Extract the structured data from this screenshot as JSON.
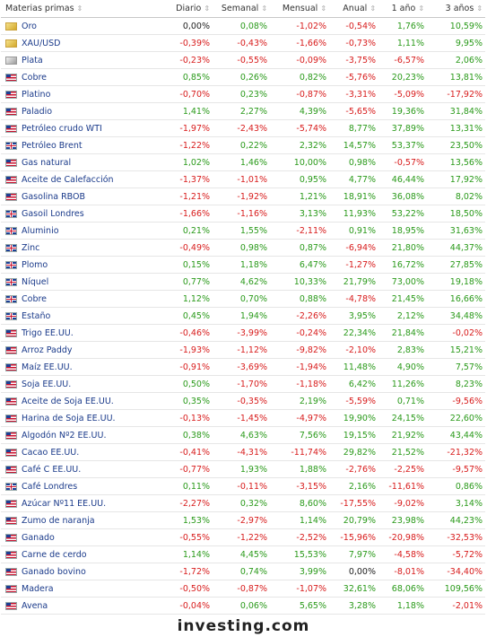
{
  "columns": {
    "name": "Materias primas",
    "daily": "Diario",
    "weekly": "Semanal",
    "monthly": "Mensual",
    "yearly": "Anual",
    "one_year": "1 año",
    "three_years": "3 años"
  },
  "rows": [
    {
      "flag": "gold",
      "name": "Oro",
      "daily": "0,00%",
      "weekly": "0,08%",
      "monthly": "-1,02%",
      "yearly": "-0,54%",
      "one_year": "1,76%",
      "three_years": "10,59%"
    },
    {
      "flag": "gold",
      "name": "XAU/USD",
      "daily": "-0,39%",
      "weekly": "-0,43%",
      "monthly": "-1,66%",
      "yearly": "-0,73%",
      "one_year": "1,11%",
      "three_years": "9,95%"
    },
    {
      "flag": "silver",
      "name": "Plata",
      "daily": "-0,23%",
      "weekly": "-0,55%",
      "monthly": "-0,09%",
      "yearly": "-3,75%",
      "one_year": "-6,57%",
      "three_years": "2,06%"
    },
    {
      "flag": "us",
      "name": "Cobre",
      "daily": "0,85%",
      "weekly": "0,26%",
      "monthly": "0,82%",
      "yearly": "-5,76%",
      "one_year": "20,23%",
      "three_years": "13,81%"
    },
    {
      "flag": "us",
      "name": "Platino",
      "daily": "-0,70%",
      "weekly": "0,23%",
      "monthly": "-0,87%",
      "yearly": "-3,31%",
      "one_year": "-5,09%",
      "three_years": "-17,92%"
    },
    {
      "flag": "us",
      "name": "Paladio",
      "daily": "1,41%",
      "weekly": "2,27%",
      "monthly": "4,39%",
      "yearly": "-5,65%",
      "one_year": "19,36%",
      "three_years": "31,84%"
    },
    {
      "flag": "us",
      "name": "Petróleo crudo WTI",
      "daily": "-1,97%",
      "weekly": "-2,43%",
      "monthly": "-5,74%",
      "yearly": "8,77%",
      "one_year": "37,89%",
      "three_years": "13,31%"
    },
    {
      "flag": "uk",
      "name": "Petróleo Brent",
      "daily": "-1,22%",
      "weekly": "0,22%",
      "monthly": "2,32%",
      "yearly": "14,57%",
      "one_year": "53,37%",
      "three_years": "23,50%"
    },
    {
      "flag": "us",
      "name": "Gas natural",
      "daily": "1,02%",
      "weekly": "1,46%",
      "monthly": "10,00%",
      "yearly": "0,98%",
      "one_year": "-0,57%",
      "three_years": "13,56%"
    },
    {
      "flag": "us",
      "name": "Aceite de Calefacción",
      "daily": "-1,37%",
      "weekly": "-1,01%",
      "monthly": "0,95%",
      "yearly": "4,77%",
      "one_year": "46,44%",
      "three_years": "17,92%"
    },
    {
      "flag": "us",
      "name": "Gasolina RBOB",
      "daily": "-1,21%",
      "weekly": "-1,92%",
      "monthly": "1,21%",
      "yearly": "18,91%",
      "one_year": "36,08%",
      "three_years": "8,02%"
    },
    {
      "flag": "uk",
      "name": "Gasoil Londres",
      "daily": "-1,66%",
      "weekly": "-1,16%",
      "monthly": "3,13%",
      "yearly": "11,93%",
      "one_year": "53,22%",
      "three_years": "18,50%"
    },
    {
      "flag": "uk",
      "name": "Aluminio",
      "daily": "0,21%",
      "weekly": "1,55%",
      "monthly": "-2,11%",
      "yearly": "0,91%",
      "one_year": "18,95%",
      "three_years": "31,63%"
    },
    {
      "flag": "uk",
      "name": "Zinc",
      "daily": "-0,49%",
      "weekly": "0,98%",
      "monthly": "0,87%",
      "yearly": "-6,94%",
      "one_year": "21,80%",
      "three_years": "44,37%"
    },
    {
      "flag": "uk",
      "name": "Plomo",
      "daily": "0,15%",
      "weekly": "1,18%",
      "monthly": "6,47%",
      "yearly": "-1,27%",
      "one_year": "16,72%",
      "three_years": "27,85%"
    },
    {
      "flag": "uk",
      "name": "Níquel",
      "daily": "0,77%",
      "weekly": "4,62%",
      "monthly": "10,33%",
      "yearly": "21,79%",
      "one_year": "73,00%",
      "three_years": "19,18%"
    },
    {
      "flag": "uk",
      "name": "Cobre",
      "daily": "1,12%",
      "weekly": "0,70%",
      "monthly": "0,88%",
      "yearly": "-4,78%",
      "one_year": "21,45%",
      "three_years": "16,66%"
    },
    {
      "flag": "uk",
      "name": "Estaño",
      "daily": "0,45%",
      "weekly": "1,94%",
      "monthly": "-2,26%",
      "yearly": "3,95%",
      "one_year": "2,12%",
      "three_years": "34,48%"
    },
    {
      "flag": "us",
      "name": "Trigo EE.UU.",
      "daily": "-0,46%",
      "weekly": "-3,99%",
      "monthly": "-0,24%",
      "yearly": "22,34%",
      "one_year": "21,84%",
      "three_years": "-0,02%"
    },
    {
      "flag": "us",
      "name": "Arroz Paddy",
      "daily": "-1,93%",
      "weekly": "-1,12%",
      "monthly": "-9,82%",
      "yearly": "-2,10%",
      "one_year": "2,83%",
      "three_years": "15,21%"
    },
    {
      "flag": "us",
      "name": "Maíz EE.UU.",
      "daily": "-0,91%",
      "weekly": "-3,69%",
      "monthly": "-1,94%",
      "yearly": "11,48%",
      "one_year": "4,90%",
      "three_years": "7,57%"
    },
    {
      "flag": "us",
      "name": "Soja EE.UU.",
      "daily": "0,50%",
      "weekly": "-1,70%",
      "monthly": "-1,18%",
      "yearly": "6,42%",
      "one_year": "11,26%",
      "three_years": "8,23%"
    },
    {
      "flag": "us",
      "name": "Aceite de Soja EE.UU.",
      "daily": "0,35%",
      "weekly": "-0,35%",
      "monthly": "2,19%",
      "yearly": "-5,59%",
      "one_year": "0,71%",
      "three_years": "-9,56%"
    },
    {
      "flag": "us",
      "name": "Harina de Soja EE.UU.",
      "daily": "-0,13%",
      "weekly": "-1,45%",
      "monthly": "-4,97%",
      "yearly": "19,90%",
      "one_year": "24,15%",
      "three_years": "22,60%"
    },
    {
      "flag": "us",
      "name": "Algodón Nº2 EE.UU.",
      "daily": "0,38%",
      "weekly": "4,63%",
      "monthly": "7,56%",
      "yearly": "19,15%",
      "one_year": "21,92%",
      "three_years": "43,44%"
    },
    {
      "flag": "us",
      "name": "Cacao EE.UU.",
      "daily": "-0,41%",
      "weekly": "-4,31%",
      "monthly": "-11,74%",
      "yearly": "29,82%",
      "one_year": "21,52%",
      "three_years": "-21,32%"
    },
    {
      "flag": "us",
      "name": "Café C EE.UU.",
      "daily": "-0,77%",
      "weekly": "1,93%",
      "monthly": "1,88%",
      "yearly": "-2,76%",
      "one_year": "-2,25%",
      "three_years": "-9,57%"
    },
    {
      "flag": "uk",
      "name": "Café Londres",
      "daily": "0,11%",
      "weekly": "-0,11%",
      "monthly": "-3,15%",
      "yearly": "2,16%",
      "one_year": "-11,61%",
      "three_years": "0,86%"
    },
    {
      "flag": "us",
      "name": "Azúcar Nº11 EE.UU.",
      "daily": "-2,27%",
      "weekly": "0,32%",
      "monthly": "8,60%",
      "yearly": "-17,55%",
      "one_year": "-9,02%",
      "three_years": "3,14%"
    },
    {
      "flag": "us",
      "name": "Zumo de naranja",
      "daily": "1,53%",
      "weekly": "-2,97%",
      "monthly": "1,14%",
      "yearly": "20,79%",
      "one_year": "23,98%",
      "three_years": "44,23%"
    },
    {
      "flag": "us",
      "name": "Ganado",
      "daily": "-0,55%",
      "weekly": "-1,22%",
      "monthly": "-2,52%",
      "yearly": "-15,96%",
      "one_year": "-20,98%",
      "three_years": "-32,53%"
    },
    {
      "flag": "us",
      "name": "Carne de cerdo",
      "daily": "1,14%",
      "weekly": "4,45%",
      "monthly": "15,53%",
      "yearly": "7,97%",
      "one_year": "-4,58%",
      "three_years": "-5,72%"
    },
    {
      "flag": "us",
      "name": "Ganado bovino",
      "daily": "-1,72%",
      "weekly": "0,74%",
      "monthly": "3,99%",
      "yearly": "0,00%",
      "one_year": "-8,01%",
      "three_years": "-34,40%"
    },
    {
      "flag": "us",
      "name": "Madera",
      "daily": "-0,50%",
      "weekly": "-0,87%",
      "monthly": "-1,07%",
      "yearly": "32,61%",
      "one_year": "68,06%",
      "three_years": "109,56%"
    },
    {
      "flag": "us",
      "name": "Avena",
      "daily": "-0,04%",
      "weekly": "0,06%",
      "monthly": "5,65%",
      "yearly": "3,28%",
      "one_year": "1,18%",
      "three_years": "-2,01%"
    }
  ],
  "footer": "investing.com",
  "colors": {
    "positive": "#2a9a1a",
    "negative": "#d81c1c",
    "link": "#1a3a8a"
  },
  "sort_icon": "sort-icon"
}
